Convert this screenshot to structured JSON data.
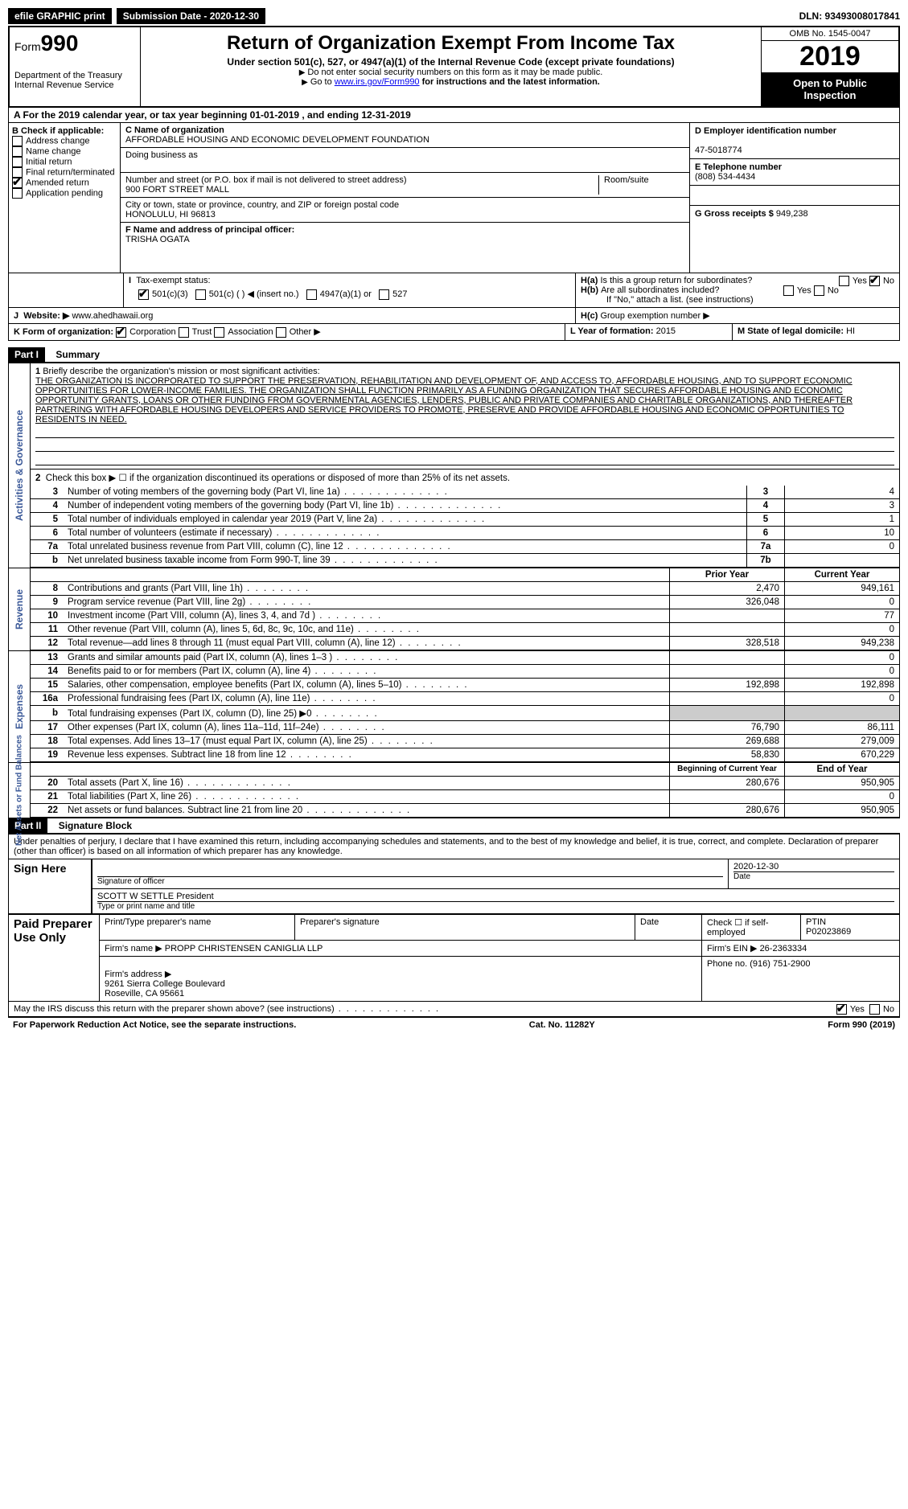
{
  "topbar": {
    "efile": "efile GRAPHIC print",
    "submission_label": "Submission Date - 2020-12-30",
    "dln_label": "DLN: 93493008017841"
  },
  "header": {
    "form_prefix": "Form",
    "form_num": "990",
    "dept": "Department of the Treasury\nInternal Revenue Service",
    "title": "Return of Organization Exempt From Income Tax",
    "sub": "Under section 501(c), 527, or 4947(a)(1) of the Internal Revenue Code (except private foundations)",
    "note1": "Do not enter social security numbers on this form as it may be made public.",
    "note2_prefix": "Go to ",
    "note2_link": "www.irs.gov/Form990",
    "note2_suffix": " for instructions and the latest information.",
    "omb": "OMB No. 1545-0047",
    "year": "2019",
    "open": "Open to Public Inspection"
  },
  "row_a": "A   For the 2019 calendar year, or tax year beginning 01-01-2019    , and ending 12-31-2019",
  "box_b": {
    "label": "B Check if applicable:",
    "items": [
      "Address change",
      "Name change",
      "Initial return",
      "Final return/terminated",
      "Amended return",
      "Application pending"
    ],
    "checked_index": 4
  },
  "box_c": {
    "name_label": "C Name of organization",
    "org_name": "AFFORDABLE HOUSING AND ECONOMIC DEVELOPMENT FOUNDATION",
    "dba_label": "Doing business as",
    "dba": "",
    "street_label": "Number and street (or P.O. box if mail is not delivered to street address)",
    "room_label": "Room/suite",
    "street": "900 FORT STREET MALL",
    "city_label": "City or town, state or province, country, and ZIP or foreign postal code",
    "city": "HONOLULU, HI   96813",
    "officer_label": "F  Name and address of principal officer:",
    "officer": "TRISHA OGATA"
  },
  "box_d": {
    "ein_label": "D Employer identification number",
    "ein": "47-5018774",
    "tel_label": "E Telephone number",
    "tel": "(808) 534-4434",
    "gross_label": "G Gross receipts $",
    "gross": "949,238"
  },
  "box_h": {
    "ha": "Is this a group return for subordinates?",
    "hb": "Are all subordinates included?",
    "hb_note": "If \"No,\" attach a list. (see instructions)",
    "hc": "Group exemption number ▶",
    "ha_no_checked": true
  },
  "tax_status": {
    "label": "Tax-exempt status:",
    "opt1": "501(c)(3)",
    "opt2": "501(c) (  ) ◀ (insert no.)",
    "opt3": "4947(a)(1) or",
    "opt4": "527",
    "checked": 0
  },
  "website": {
    "label": "Website: ▶",
    "value": "www.ahedhawaii.org"
  },
  "box_k": {
    "label": "K Form of organization:",
    "opts": [
      "Corporation",
      "Trust",
      "Association",
      "Other ▶"
    ],
    "checked": 0
  },
  "box_l": {
    "label": "L Year of formation:",
    "value": "2015"
  },
  "box_m": {
    "label": "M State of legal domicile:",
    "value": "HI"
  },
  "part1": {
    "hdr": "Part I",
    "title": "Summary",
    "mission_label": "Briefly describe the organization's mission or most significant activities:",
    "mission": "THE ORGANIZATION IS INCORPORATED TO SUPPORT THE PRESERVATION, REHABILITATION AND DEVELOPMENT OF, AND ACCESS TO, AFFORDABLE HOUSING, AND TO SUPPORT ECONOMIC OPPORTUNITIES FOR LOWER-INCOME FAMILIES. THE ORGANIZATION SHALL FUNCTION PRIMARILY AS A FUNDING ORGANIZATION THAT SECURES AFFORDABLE HOUSING AND ECONOMIC OPPORTUNITY GRANTS, LOANS OR OTHER FUNDING FROM GOVERNMENTAL AGENCIES, LENDERS, PUBLIC AND PRIVATE COMPANIES AND CHARITABLE ORGANIZATIONS, AND THEREAFTER PARTNERING WITH AFFORDABLE HOUSING DEVELOPERS AND SERVICE PROVIDERS TO PROMOTE, PRESERVE AND PROVIDE AFFORDABLE HOUSING AND ECONOMIC OPPORTUNITIES TO RESIDENTS IN NEED.",
    "line2": "Check this box ▶ ☐ if the organization discontinued its operations or disposed of more than 25% of its net assets."
  },
  "governance_rows": [
    {
      "n": "3",
      "label": "Number of voting members of the governing body (Part VI, line 1a)",
      "box": "3",
      "val": "4"
    },
    {
      "n": "4",
      "label": "Number of independent voting members of the governing body (Part VI, line 1b)",
      "box": "4",
      "val": "3"
    },
    {
      "n": "5",
      "label": "Total number of individuals employed in calendar year 2019 (Part V, line 2a)",
      "box": "5",
      "val": "1"
    },
    {
      "n": "6",
      "label": "Total number of volunteers (estimate if necessary)",
      "box": "6",
      "val": "10"
    },
    {
      "n": "7a",
      "label": "Total unrelated business revenue from Part VIII, column (C), line 12",
      "box": "7a",
      "val": "0"
    },
    {
      "n": "b",
      "label": "Net unrelated business taxable income from Form 990-T, line 39",
      "box": "7b",
      "val": ""
    }
  ],
  "col_headers": {
    "prior": "Prior Year",
    "current": "Current Year",
    "boy": "Beginning of Current Year",
    "eoy": "End of Year"
  },
  "revenue_rows": [
    {
      "n": "8",
      "label": "Contributions and grants (Part VIII, line 1h)",
      "prior": "2,470",
      "curr": "949,161"
    },
    {
      "n": "9",
      "label": "Program service revenue (Part VIII, line 2g)",
      "prior": "326,048",
      "curr": "0"
    },
    {
      "n": "10",
      "label": "Investment income (Part VIII, column (A), lines 3, 4, and 7d )",
      "prior": "",
      "curr": "77"
    },
    {
      "n": "11",
      "label": "Other revenue (Part VIII, column (A), lines 5, 6d, 8c, 9c, 10c, and 11e)",
      "prior": "",
      "curr": "0"
    },
    {
      "n": "12",
      "label": "Total revenue—add lines 8 through 11 (must equal Part VIII, column (A), line 12)",
      "prior": "328,518",
      "curr": "949,238"
    }
  ],
  "expense_rows": [
    {
      "n": "13",
      "label": "Grants and similar amounts paid (Part IX, column (A), lines 1–3 )",
      "prior": "",
      "curr": "0"
    },
    {
      "n": "14",
      "label": "Benefits paid to or for members (Part IX, column (A), line 4)",
      "prior": "",
      "curr": "0"
    },
    {
      "n": "15",
      "label": "Salaries, other compensation, employee benefits (Part IX, column (A), lines 5–10)",
      "prior": "192,898",
      "curr": "192,898"
    },
    {
      "n": "16a",
      "label": "Professional fundraising fees (Part IX, column (A), line 11e)",
      "prior": "",
      "curr": "0"
    },
    {
      "n": "b",
      "label": "Total fundraising expenses (Part IX, column (D), line 25)  ▶0",
      "prior": "gray",
      "curr": "gray"
    },
    {
      "n": "17",
      "label": "Other expenses (Part IX, column (A), lines 11a–11d, 11f–24e)",
      "prior": "76,790",
      "curr": "86,111"
    },
    {
      "n": "18",
      "label": "Total expenses. Add lines 13–17 (must equal Part IX, column (A), line 25)",
      "prior": "269,688",
      "curr": "279,009"
    },
    {
      "n": "19",
      "label": "Revenue less expenses. Subtract line 18 from line 12",
      "prior": "58,830",
      "curr": "670,229"
    }
  ],
  "netassets_rows": [
    {
      "n": "20",
      "label": "Total assets (Part X, line 16)",
      "prior": "280,676",
      "curr": "950,905"
    },
    {
      "n": "21",
      "label": "Total liabilities (Part X, line 26)",
      "prior": "",
      "curr": "0"
    },
    {
      "n": "22",
      "label": "Net assets or fund balances. Subtract line 21 from line 20",
      "prior": "280,676",
      "curr": "950,905"
    }
  ],
  "side_labels": {
    "gov": "Activities & Governance",
    "rev": "Revenue",
    "exp": "Expenses",
    "net": "Net Assets or\nFund Balances"
  },
  "part2": {
    "hdr": "Part II",
    "title": "Signature Block",
    "perjury": "Under penalties of perjury, I declare that I have examined this return, including accompanying schedules and statements, and to the best of my knowledge and belief, it is true, correct, and complete. Declaration of preparer (other than officer) is based on all information of which preparer has any knowledge."
  },
  "sign": {
    "here": "Sign Here",
    "sig_label": "Signature of officer",
    "date_label": "Date",
    "date": "2020-12-30",
    "name": "SCOTT W SETTLE  President",
    "name_label": "Type or print name and title"
  },
  "preparer": {
    "side": "Paid Preparer Use Only",
    "h1": "Print/Type preparer's name",
    "h2": "Preparer's signature",
    "h3": "Date",
    "h4": "Check ☐ if self-employed",
    "h5": "PTIN",
    "ptin": "P02023869",
    "firm_label": "Firm's name    ▶",
    "firm": "PROPP CHRISTENSEN CANIGLIA LLP",
    "ein_label": "Firm's EIN ▶",
    "ein": "26-2363334",
    "addr_label": "Firm's address ▶",
    "addr": "9261 Sierra College Boulevard\nRoseville, CA  95661",
    "phone_label": "Phone no.",
    "phone": "(916) 751-2900"
  },
  "discuss": "May the IRS discuss this return with the preparer shown above? (see instructions)",
  "footer": {
    "left": "For Paperwork Reduction Act Notice, see the separate instructions.",
    "center": "Cat. No. 11282Y",
    "right": "Form 990 (2019)"
  }
}
